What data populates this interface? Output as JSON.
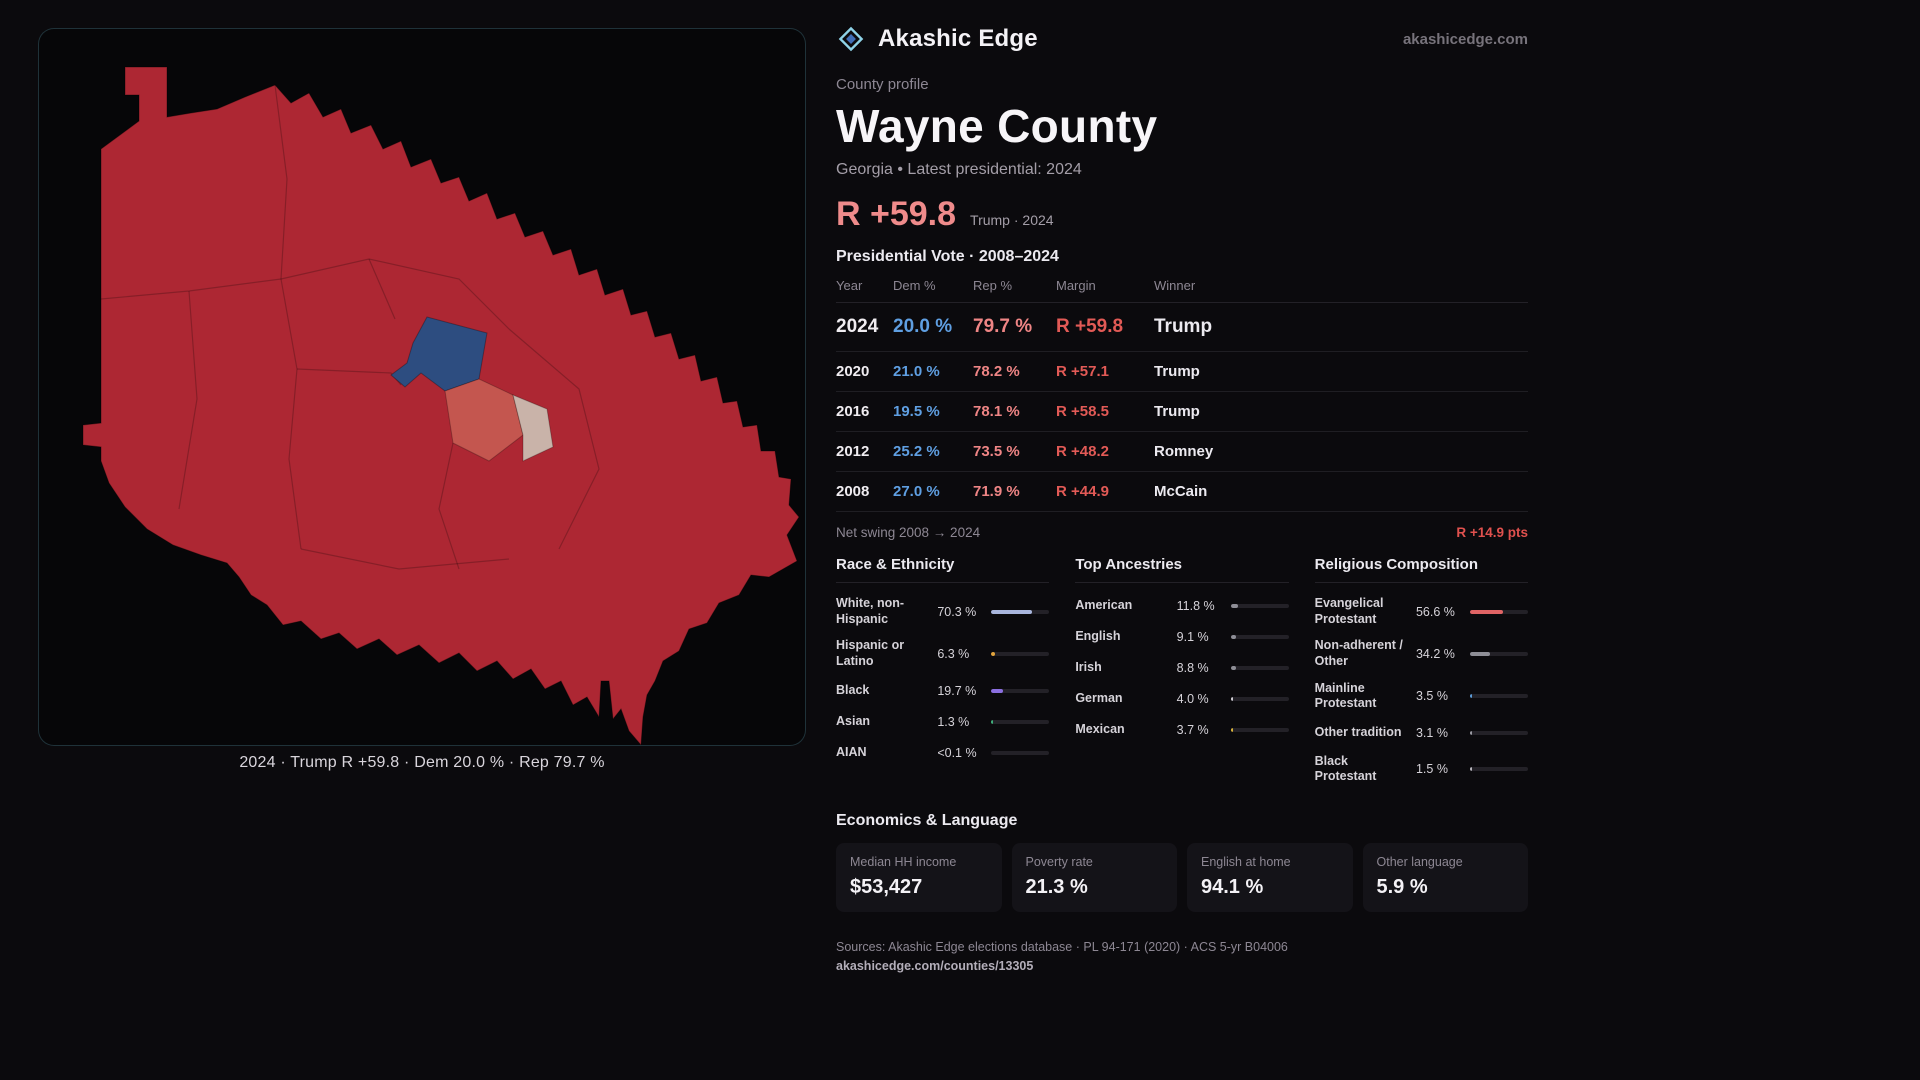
{
  "brand": {
    "name": "Akashic Edge",
    "domain": "akashicedge.com"
  },
  "colors": {
    "accent": "#8fd3e8",
    "dem": "#5f9fe2",
    "rep": "#ef8585",
    "margin": "#e25a56",
    "headline": "#ef8b8b",
    "map_rep": "#ad2733",
    "map_dem": "#2d4d80"
  },
  "map": {
    "caption": "2024 · Trump R +59.8 · Dem 20.0 % · Rep 79.7 %"
  },
  "profile": {
    "kicker": "County profile",
    "title": "Wayne County",
    "subtitle": "Georgia • Latest presidential: 2024",
    "headline_margin": "R +59.8",
    "headline_note": "Trump · 2024"
  },
  "vote_table": {
    "title": "Presidential Vote · 2008–2024",
    "columns": [
      "Year",
      "Dem %",
      "Rep %",
      "Margin",
      "Winner"
    ],
    "rows": [
      {
        "year": "2024",
        "dem": "20.0 %",
        "rep": "79.7 %",
        "margin": "R +59.8",
        "winner": "Trump"
      },
      {
        "year": "2020",
        "dem": "21.0 %",
        "rep": "78.2 %",
        "margin": "R +57.1",
        "winner": "Trump"
      },
      {
        "year": "2016",
        "dem": "19.5 %",
        "rep": "78.1 %",
        "margin": "R +58.5",
        "winner": "Trump"
      },
      {
        "year": "2012",
        "dem": "25.2 %",
        "rep": "73.5 %",
        "margin": "R +48.2",
        "winner": "Romney"
      },
      {
        "year": "2008",
        "dem": "27.0 %",
        "rep": "71.9 %",
        "margin": "R +44.9",
        "winner": "McCain"
      }
    ],
    "net_swing_label": "Net swing 2008 → 2024",
    "net_swing_value": "R +14.9 pts"
  },
  "demographics": {
    "race": {
      "title": "Race & Ethnicity",
      "items": [
        {
          "label": "White, non-Hispanic",
          "value": "70.3 %",
          "pct": 70.3,
          "color": "#a9b6dd"
        },
        {
          "label": "Hispanic or Latino",
          "value": "6.3 %",
          "pct": 6.3,
          "color": "#e3a43c"
        },
        {
          "label": "Black",
          "value": "19.7 %",
          "pct": 19.7,
          "color": "#8b6fe0"
        },
        {
          "label": "Asian",
          "value": "1.3 %",
          "pct": 1.3,
          "color": "#3fae7a"
        },
        {
          "label": "AIAN",
          "value": "<0.1 %",
          "pct": 0,
          "color": "#9a9aa2"
        }
      ]
    },
    "ancestry": {
      "title": "Top Ancestries",
      "items": [
        {
          "label": "American",
          "value": "11.8 %",
          "pct": 11.8,
          "color": "#8e8e96"
        },
        {
          "label": "English",
          "value": "9.1 %",
          "pct": 9.1,
          "color": "#8e8e96"
        },
        {
          "label": "Irish",
          "value": "8.8 %",
          "pct": 8.8,
          "color": "#8e8e96"
        },
        {
          "label": "German",
          "value": "4.0 %",
          "pct": 4.0,
          "color": "#cfcdd4"
        },
        {
          "label": "Mexican",
          "value": "3.7 %",
          "pct": 3.7,
          "color": "#d9b43c"
        }
      ]
    },
    "religion": {
      "title": "Religious Composition",
      "items": [
        {
          "label": "Evangelical Protestant",
          "value": "56.6 %",
          "pct": 56.6,
          "color": "#e06465"
        },
        {
          "label": "Non-adherent / Other",
          "value": "34.2 %",
          "pct": 34.2,
          "color": "#8e8e96"
        },
        {
          "label": "Mainline Protestant",
          "value": "3.5 %",
          "pct": 3.5,
          "color": "#5b9bd8"
        },
        {
          "label": "Other tradition",
          "value": "3.1 %",
          "pct": 3.1,
          "color": "#9a9aa2"
        },
        {
          "label": "Black Protestant",
          "value": "1.5 %",
          "pct": 1.5,
          "color": "#b8b6bd"
        }
      ]
    }
  },
  "economics": {
    "title": "Economics & Language",
    "stats": [
      {
        "label": "Median HH income",
        "value": "$53,427"
      },
      {
        "label": "Poverty rate",
        "value": "21.3 %"
      },
      {
        "label": "English at home",
        "value": "94.1 %"
      },
      {
        "label": "Other language",
        "value": "5.9 %"
      }
    ]
  },
  "footer": {
    "sources": "Sources: Akashic Edge elections database · PL 94-171 (2020) · ACS 5-yr B04006",
    "permalink": "akashicedge.com/counties/13305"
  }
}
